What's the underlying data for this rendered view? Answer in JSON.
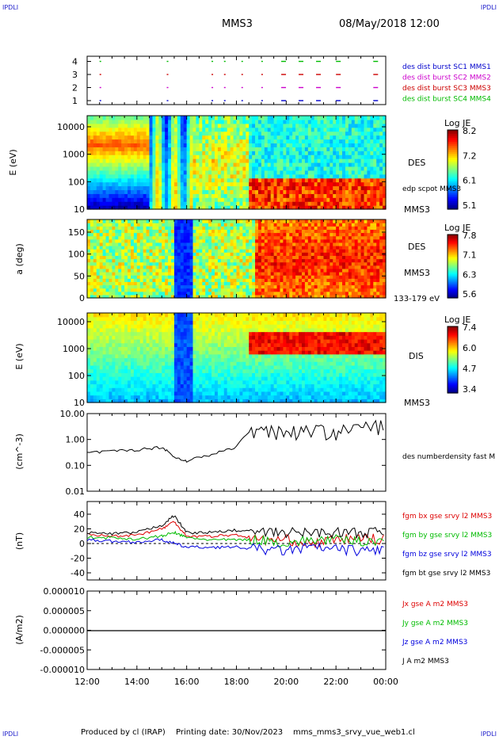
{
  "corner_labels": {
    "tl": "IPDLI",
    "tr": "IPDLI",
    "bl": "IPDLI",
    "br": "IPDLI"
  },
  "header": {
    "spacecraft": "MMS3",
    "datetime": "08/May/2018 12:00"
  },
  "footer": {
    "produced_by": "Produced by cl (IRAP)",
    "printing_date": "Printing date: 30/Nov/2023",
    "filename": "mms_mms3_srvy_vue_web1.cl"
  },
  "time_axis": {
    "ticks": [
      "12:00",
      "14:00",
      "16:00",
      "18:00",
      "20:00",
      "22:00",
      "00:00"
    ]
  },
  "colors": {
    "burst_c1": "#0000cc",
    "burst_c2": "#cc00cc",
    "burst_c3": "#cc0000",
    "burst_c4": "#00bb00",
    "bx": "#dd0000",
    "by": "#00bb00",
    "bz": "#0000dd",
    "bt": "#000000"
  },
  "chart_data": [
    {
      "type": "scatter",
      "panel": "burst availability",
      "yticks": [
        "1",
        "2",
        "3",
        "4"
      ],
      "legend": [
        "des dist burst SC1 MMS1",
        "des dist burst SC2 MMS2",
        "des dist burst SC3 MMS3",
        "des dist burst SC4 MMS4"
      ],
      "x_hours": [
        12.5,
        15.2,
        17.0,
        17.5,
        18.2,
        19.0,
        19.8,
        20.5,
        21.2,
        22.0,
        23.5
      ]
    },
    {
      "type": "heatmap",
      "panel": "electron energy spectrogram",
      "ylabel": "E (eV)",
      "yticks": [
        "10",
        "100",
        "1000",
        "10000"
      ],
      "colorbar": {
        "title": "Log JE",
        "ticks": [
          "8.2",
          "7.2",
          "6.1",
          "5.1"
        ]
      },
      "labels": [
        "DES",
        "edp scpot MMS3",
        "MMS3"
      ]
    },
    {
      "type": "heatmap",
      "panel": "electron pitch angle",
      "ylabel": "a (deg)",
      "yticks": [
        "0",
        "50",
        "100",
        "150"
      ],
      "colorbar": {
        "title": "Log JE",
        "ticks": [
          "7.8",
          "7.1",
          "6.3",
          "5.6"
        ]
      },
      "labels": [
        "DES",
        "MMS3",
        "133-179 eV"
      ]
    },
    {
      "type": "heatmap",
      "panel": "ion energy spectrogram",
      "ylabel": "E (eV)",
      "yticks": [
        "10",
        "100",
        "1000",
        "10000"
      ],
      "colorbar": {
        "title": "Log JE",
        "ticks": [
          "7.4",
          "6.0",
          "4.7",
          "3.4"
        ]
      },
      "labels": [
        "DIS",
        "MMS3"
      ]
    },
    {
      "type": "line",
      "panel": "density",
      "ylabel": "(cm^-3)",
      "yticks": [
        "0.01",
        "0.10",
        "1.00",
        "10.00"
      ],
      "legend": [
        "des numberdensity fast M"
      ],
      "x_hours": [
        12.0,
        13.0,
        14.0,
        15.0,
        15.5,
        16.0,
        17.0,
        18.0,
        19.0,
        20.0,
        21.0,
        22.0,
        23.0,
        24.0
      ],
      "values": [
        0.3,
        0.35,
        0.4,
        0.5,
        0.2,
        0.15,
        0.25,
        0.5,
        3.0,
        2.0,
        2.5,
        2.0,
        3.0,
        4.0
      ]
    },
    {
      "type": "line",
      "panel": "magnetic field",
      "ylabel": "(nT)",
      "yticks": [
        "-40",
        "-20",
        "0",
        "20",
        "40"
      ],
      "x_hours": [
        12.0,
        13.0,
        14.0,
        15.0,
        15.5,
        16.0,
        17.0,
        18.0,
        19.0,
        20.0,
        21.0,
        22.0,
        23.0,
        24.0
      ],
      "series": [
        {
          "name": "fgm bx gse srvy l2 MMS3",
          "values": [
            12,
            10,
            12,
            20,
            30,
            10,
            10,
            12,
            5,
            5,
            0,
            5,
            8,
            5
          ]
        },
        {
          "name": "fgm by gse srvy l2 MMS3",
          "values": [
            8,
            8,
            6,
            10,
            15,
            8,
            5,
            5,
            5,
            0,
            5,
            5,
            3,
            5
          ]
        },
        {
          "name": "fgm bz gse srvy l2 MMS3",
          "values": [
            5,
            3,
            2,
            5,
            0,
            -5,
            -5,
            -5,
            -8,
            -10,
            -5,
            -8,
            -10,
            -8
          ]
        },
        {
          "name": "fgm bt gse srvy l2 MMS3",
          "values": [
            15,
            13,
            15,
            25,
            38,
            15,
            15,
            18,
            15,
            15,
            15,
            15,
            15,
            15
          ]
        }
      ]
    },
    {
      "type": "line",
      "panel": "current density",
      "ylabel": "(A/m2)",
      "yticks": [
        "-0.000010",
        "-0.000005",
        "0.000000",
        "0.000005",
        "0.000010"
      ],
      "series": [
        {
          "name": "Jx gse A m2 MMS3"
        },
        {
          "name": "Jy gse A m2 MMS3"
        },
        {
          "name": "Jz gse A m2 MMS3"
        },
        {
          "name": "J A m2 MMS3"
        }
      ]
    }
  ]
}
